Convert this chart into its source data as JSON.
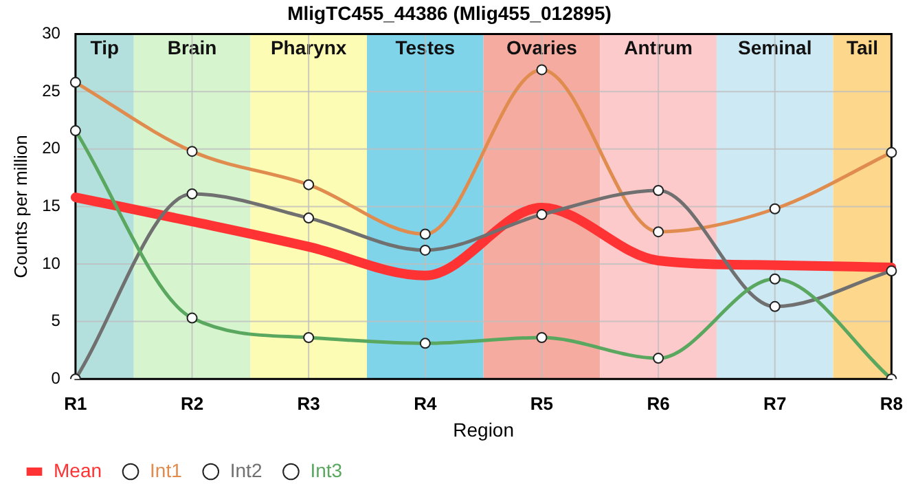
{
  "chart_data": {
    "type": "line",
    "title": "MligTC455_44386 (Mlig455_012895)",
    "xlabel": "Region",
    "ylabel": "Counts per million",
    "categories": [
      "R1",
      "R2",
      "R3",
      "R4",
      "R5",
      "R6",
      "R7",
      "R8"
    ],
    "ylim": [
      0,
      30
    ],
    "yticks": [
      0,
      5,
      10,
      15,
      20,
      25,
      30
    ],
    "grid": true,
    "legend": "bottom left",
    "bands": [
      {
        "axis": "x",
        "from": "R1",
        "to": "R1",
        "label": "Tip",
        "color": "#b3e0dd"
      },
      {
        "axis": "x",
        "from": "R2",
        "to": "R2",
        "label": "Brain",
        "color": "#d6f5cf"
      },
      {
        "axis": "x",
        "from": "R3",
        "to": "R3",
        "label": "Pharynx",
        "color": "#fdfcb4"
      },
      {
        "axis": "x",
        "from": "R4",
        "to": "R4",
        "label": "Testes",
        "color": "#80d4ea"
      },
      {
        "axis": "x",
        "from": "R5",
        "to": "R5",
        "label": "Ovaries",
        "color": "#f5ab9f"
      },
      {
        "axis": "x",
        "from": "R6",
        "to": "R6",
        "label": "Antrum",
        "color": "#fccacb"
      },
      {
        "axis": "x",
        "from": "R7",
        "to": "R7",
        "label": "Seminal",
        "color": "#cde9f3"
      },
      {
        "axis": "x",
        "from": "R8",
        "to": "R8",
        "label": "Tail",
        "color": "#fdd78b"
      }
    ],
    "series": [
      {
        "name": "Mean",
        "color": "#ff3333",
        "marker": "none",
        "values": [
          15.8,
          13.7,
          11.5,
          9.0,
          14.9,
          10.3,
          9.9,
          9.7
        ]
      },
      {
        "name": "Int1",
        "color": "#e08c4f",
        "marker": "circle",
        "values": [
          25.8,
          19.8,
          16.9,
          12.6,
          26.9,
          12.8,
          14.8,
          19.7
        ]
      },
      {
        "name": "Int2",
        "color": "#707070",
        "marker": "circle",
        "values": [
          0,
          16.1,
          14.0,
          11.2,
          14.3,
          16.4,
          6.3,
          9.4
        ]
      },
      {
        "name": "Int3",
        "color": "#5aa85f",
        "marker": "circle",
        "values": [
          21.6,
          5.3,
          3.6,
          3.1,
          3.6,
          1.8,
          8.7,
          0
        ]
      }
    ]
  }
}
